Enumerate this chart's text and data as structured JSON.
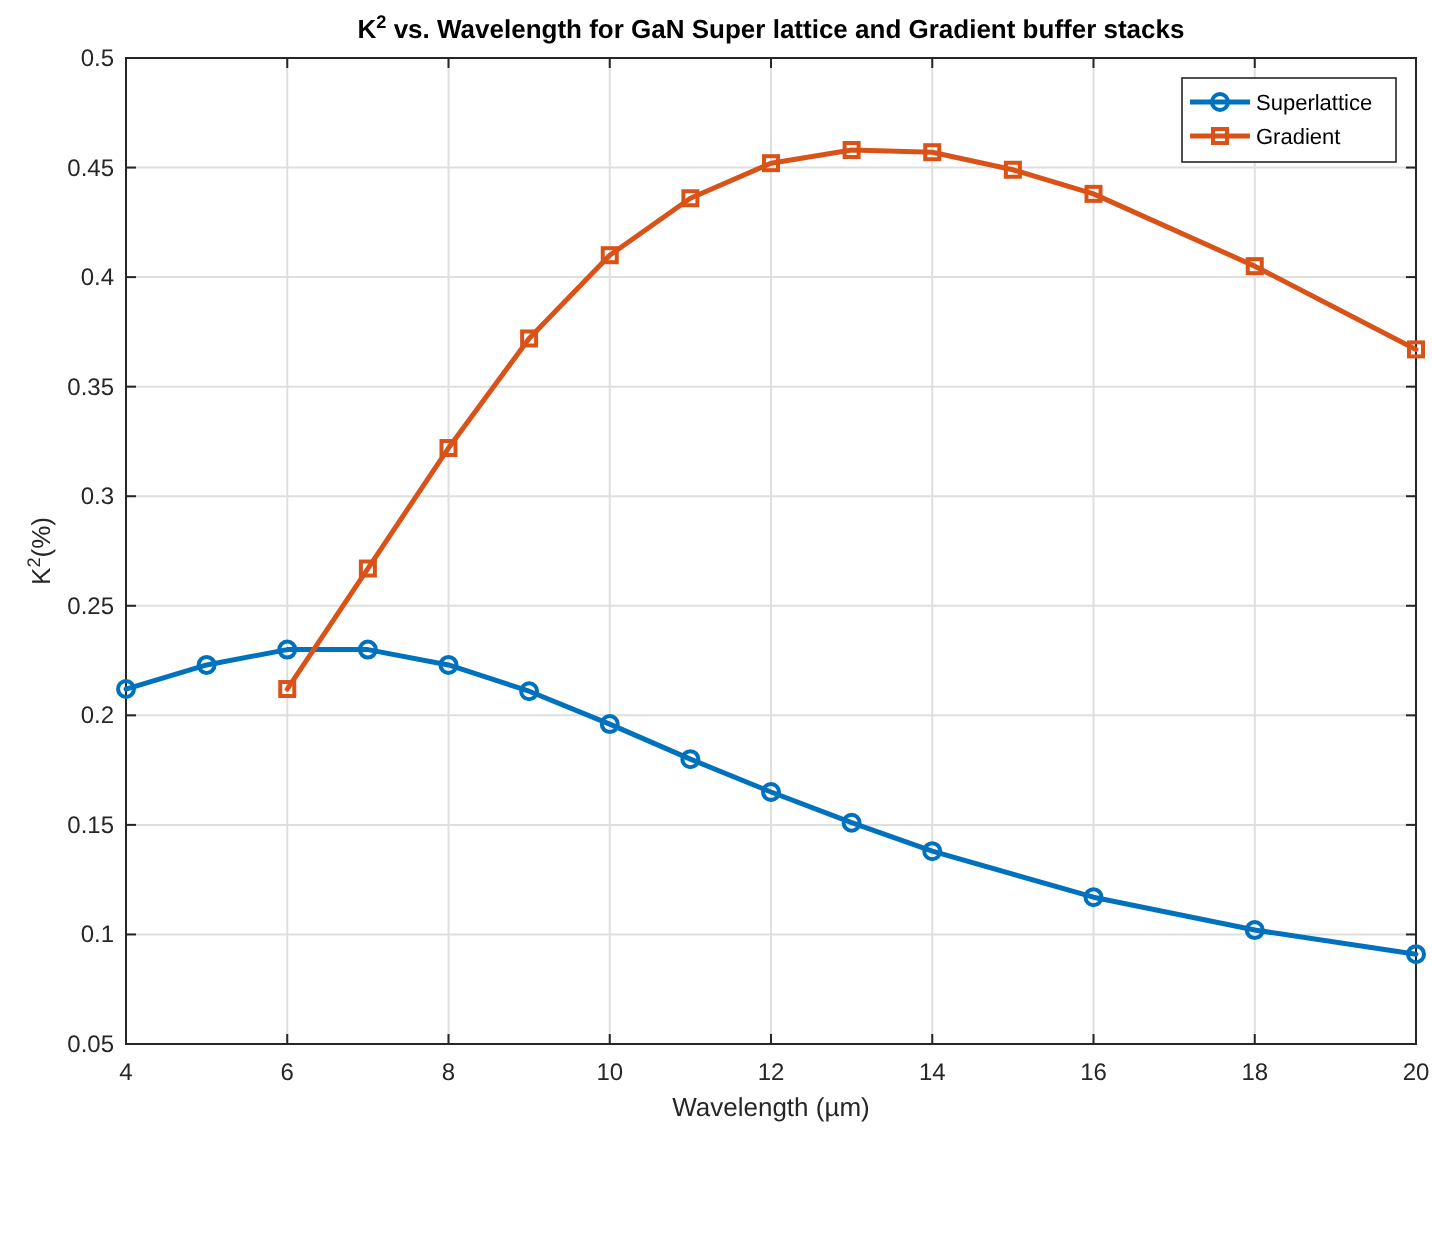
{
  "chart_data": {
    "type": "line",
    "title": "K$^{2}$ vs. Wavelength for GaN Super lattice and Gradient buffer stacks",
    "xlabel": "Wavelength (µm)",
    "ylabel": "K$^{2}$(%)",
    "series": [
      {
        "name": "Superlattice",
        "color": "#0072bd",
        "marker": "circle",
        "x": [
          4,
          5,
          6,
          7,
          8,
          9,
          10,
          11,
          12,
          13,
          14,
          16,
          18,
          20
        ],
        "values": [
          0.212,
          0.223,
          0.23,
          0.23,
          0.223,
          0.211,
          0.196,
          0.18,
          0.165,
          0.151,
          0.138,
          0.117,
          0.102,
          0.091
        ]
      },
      {
        "name": "Gradient",
        "color": "#d95319",
        "marker": "square",
        "x": [
          6,
          7,
          8,
          9,
          10,
          11,
          12,
          13,
          14,
          15,
          16,
          18,
          20
        ],
        "values": [
          0.212,
          0.267,
          0.322,
          0.372,
          0.41,
          0.436,
          0.452,
          0.458,
          0.457,
          0.449,
          0.438,
          0.405,
          0.367
        ]
      }
    ],
    "xlim": [
      4,
      20
    ],
    "xticks": [
      4,
      6,
      8,
      10,
      12,
      14,
      16,
      18,
      20
    ],
    "ylim": [
      0.05,
      0.5
    ],
    "yticks": [
      0.05,
      0.1,
      0.15,
      0.2,
      0.25,
      0.3,
      0.35,
      0.4,
      0.45,
      0.5
    ],
    "grid": true,
    "legend": "top right",
    "line_style": "solid"
  }
}
